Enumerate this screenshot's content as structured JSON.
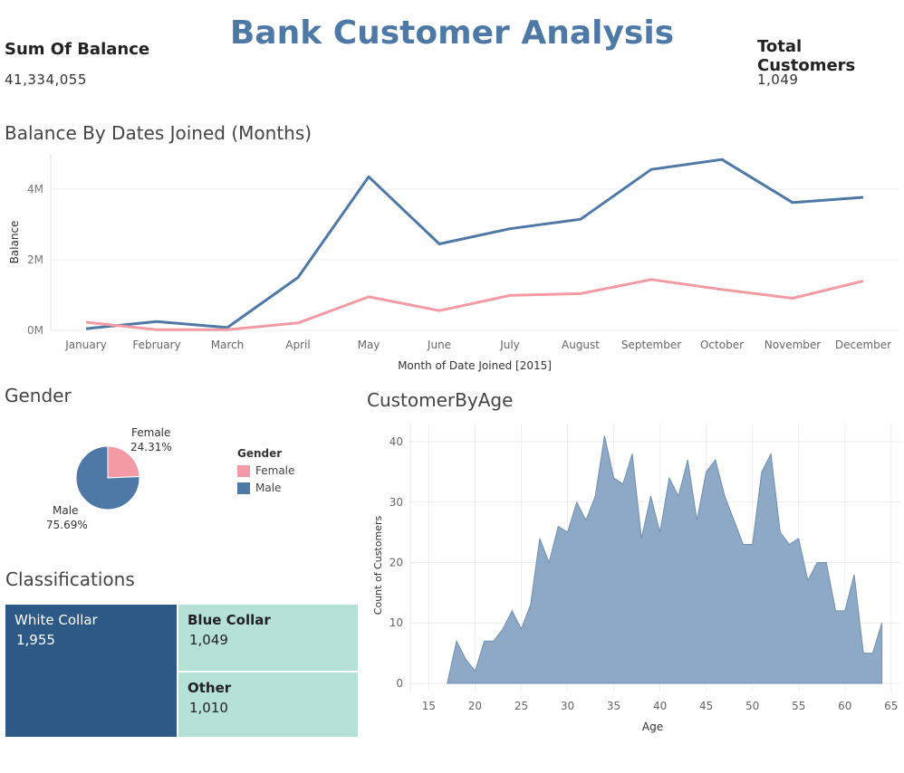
{
  "header": {
    "title": "Bank Customer Analysis",
    "kpi_balance_label": "Sum Of Balance",
    "kpi_balance_value": "41,334,055",
    "kpi_customers_label": "Total Customers",
    "kpi_customers_value": "1,049"
  },
  "colors": {
    "blue": "#4e79a7",
    "pink": "#f49aa4",
    "dark_blue": "#2d5986",
    "mint": "#b6e1d7",
    "age_fill": "#8da9c6"
  },
  "chart_data": [
    {
      "type": "line",
      "title": "Balance By Dates Joined (Months)",
      "xlabel": "Month of Date Joined [2015]",
      "ylabel": "Balance",
      "categories": [
        "January",
        "February",
        "March",
        "April",
        "May",
        "June",
        "July",
        "August",
        "September",
        "October",
        "November",
        "December"
      ],
      "yticks": [
        {
          "value": 0,
          "label": "0M"
        },
        {
          "value": 2000000,
          "label": "2M"
        },
        {
          "value": 4000000,
          "label": "4M"
        }
      ],
      "ylim": [
        0,
        5000000
      ],
      "series": [
        {
          "color": "#4e79a7",
          "values": [
            50000,
            250000,
            80000,
            1500000,
            4350000,
            2450000,
            2880000,
            3150000,
            4560000,
            4840000,
            3620000,
            3770000
          ]
        },
        {
          "color": "#f49aa4",
          "values": [
            230000,
            20000,
            20000,
            210000,
            950000,
            560000,
            990000,
            1040000,
            1440000,
            1160000,
            910000,
            1400000
          ]
        }
      ],
      "grid": true
    },
    {
      "type": "pie",
      "title": "Gender",
      "legend_title": "Gender",
      "slices": [
        {
          "label": "Female",
          "value": 24.31,
          "display": "24.31%",
          "color": "#f49aa4"
        },
        {
          "label": "Male",
          "value": 75.69,
          "display": "75.69%",
          "color": "#4e79a7"
        }
      ],
      "legend_position": "right"
    },
    {
      "type": "treemap",
      "title": "Classifications",
      "cells": [
        {
          "label": "White Collar",
          "value": "1,955",
          "color": "#2d5986"
        },
        {
          "label": "Blue Collar",
          "value": "1,049",
          "color": "#b6e1d7"
        },
        {
          "label": "Other",
          "value": "1,010",
          "color": "#b6e1d7"
        }
      ]
    },
    {
      "type": "area",
      "title": "CustomerByAge",
      "xlabel": "Age",
      "ylabel": "Count of Customers",
      "xlim": [
        13,
        66
      ],
      "ylim": [
        -1.5,
        43
      ],
      "xticks": [
        15,
        20,
        25,
        30,
        35,
        40,
        45,
        50,
        55,
        60,
        65
      ],
      "yticks": [
        0,
        10,
        20,
        30,
        40
      ],
      "x": [
        17,
        18,
        19,
        20,
        21,
        22,
        23,
        24,
        25,
        26,
        27,
        28,
        29,
        30,
        31,
        32,
        33,
        34,
        35,
        36,
        37,
        38,
        39,
        40,
        41,
        42,
        43,
        44,
        45,
        46,
        47,
        48,
        49,
        50,
        51,
        52,
        53,
        54,
        55,
        56,
        57,
        58,
        59,
        60,
        61,
        62,
        63,
        64
      ],
      "values": [
        0,
        7,
        4,
        2,
        7,
        7,
        9,
        12,
        9,
        13,
        24,
        20,
        26,
        25,
        30,
        27,
        31,
        41,
        34,
        33,
        38,
        24,
        31,
        25,
        34,
        31,
        37,
        27,
        35,
        37,
        31,
        27,
        23,
        23,
        35,
        38,
        25,
        23,
        24,
        17,
        20,
        20,
        12,
        12,
        18,
        5,
        5,
        10
      ],
      "grid": true
    }
  ]
}
